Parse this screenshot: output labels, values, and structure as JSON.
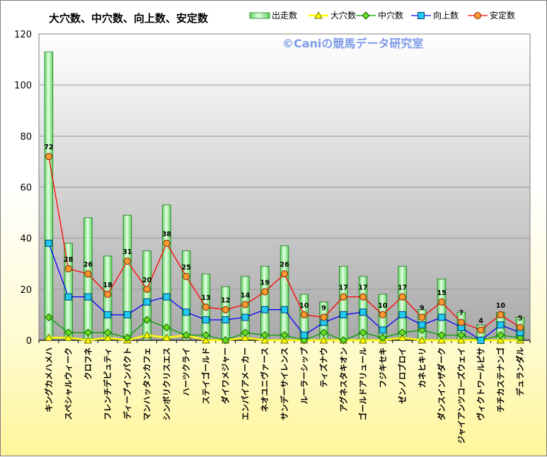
{
  "chart_data": {
    "type": "bar",
    "title": "大穴数、中穴数、向上数、安定数",
    "watermark": "©Caniの競馬データ研究室",
    "ylim": [
      0,
      120
    ],
    "yticks": [
      0,
      20,
      40,
      60,
      80,
      100,
      120
    ],
    "grid": true,
    "legend_placement": "top-right",
    "categories": [
      "キングカメハメハ",
      "スペシャルウィーク",
      "クロフネ",
      "フレンチデピュティ",
      "ディープインパクト",
      "マンハッタンカフェ",
      "シンボリクリスエス",
      "ハーツクライ",
      "ステイゴールド",
      "ダイワメジャー",
      "エンパイアメーカー",
      "ネオユニヴァース",
      "サンデーサイレンス",
      "ルーラーシップ",
      "ティズナウ",
      "アグネスタキオン",
      "ゴールドアリュール",
      "フジキセキ",
      "ゼンノロブロイ",
      "カネヒキリ",
      "ダンスインザダーク",
      "ジャイアンツコーズウェイ",
      "ヴィクトワールピサ",
      "チチカステナンゴ",
      "デュランダル"
    ],
    "series": [
      {
        "name": "出走数",
        "kind": "bar",
        "color": "#7fe67f",
        "values": [
          113,
          38,
          48,
          33,
          49,
          35,
          53,
          35,
          26,
          21,
          25,
          29,
          37,
          18,
          15,
          29,
          25,
          18,
          29,
          12,
          24,
          11,
          6,
          11,
          9
        ]
      },
      {
        "name": "大穴数",
        "kind": "line",
        "color": "#ffff00",
        "marker": "triangle",
        "values": [
          1,
          1,
          0,
          1,
          0,
          2,
          1,
          2,
          0,
          0,
          1,
          0,
          0,
          0,
          0,
          0,
          0,
          0,
          1,
          0,
          0,
          0,
          0,
          0,
          0
        ]
      },
      {
        "name": "中穴数",
        "kind": "line",
        "color": "#00a000",
        "marker": "diamond",
        "values": [
          9,
          3,
          3,
          3,
          1,
          8,
          5,
          2,
          2,
          0,
          3,
          2,
          2,
          0,
          3,
          0,
          3,
          1,
          3,
          4,
          2,
          2,
          0,
          2,
          1
        ]
      },
      {
        "name": "向上数",
        "kind": "line",
        "color": "#0000ff",
        "marker": "square",
        "values": [
          38,
          17,
          17,
          10,
          10,
          15,
          17,
          11,
          8,
          8,
          9,
          12,
          12,
          2,
          7,
          10,
          11,
          4,
          10,
          6,
          9,
          5,
          0,
          6,
          3
        ]
      },
      {
        "name": "安定数",
        "kind": "line",
        "color": "#ff0000",
        "marker": "circle",
        "values": [
          72,
          28,
          26,
          18,
          31,
          20,
          38,
          25,
          13,
          12,
          14,
          19,
          26,
          10,
          9,
          17,
          17,
          10,
          17,
          9,
          15,
          7,
          4,
          10,
          5
        ]
      }
    ],
    "data_labels_series": "安定数"
  }
}
